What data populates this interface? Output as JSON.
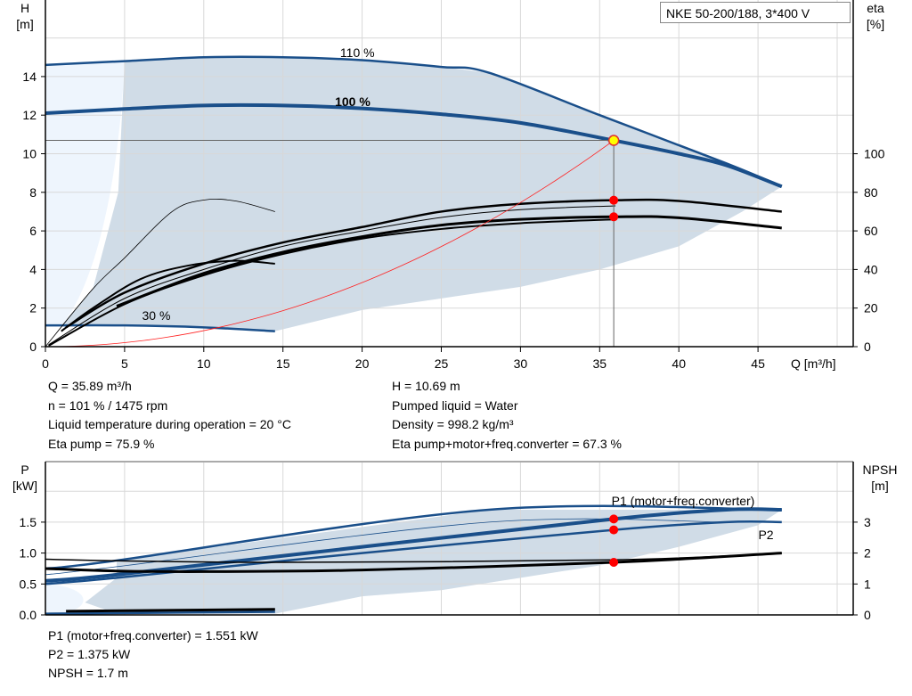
{
  "title": "NKE 50-200/188, 3*400 V",
  "chart_data": [
    {
      "type": "line",
      "xlabel": "Q [m³/h]",
      "ylabel": "H\n[m]",
      "y2label": "eta\n[%]",
      "xlim": [
        0,
        50
      ],
      "ylim": [
        0,
        16
      ],
      "y2lim": [
        0,
        160
      ],
      "xticks": [
        "0",
        "5",
        "10",
        "15",
        "20",
        "25",
        "30",
        "35",
        "40",
        "45"
      ],
      "yticks": [
        "0",
        "2",
        "4",
        "6",
        "8",
        "10",
        "12",
        "14"
      ],
      "y2ticks": [
        "0",
        "20",
        "40",
        "60",
        "80",
        "100"
      ],
      "grid": true,
      "annotations": [
        "110 %",
        "100 %",
        "30 %"
      ],
      "series": [
        {
          "id": "h110",
          "kind": "H",
          "color": "#1a4f8a",
          "width": 2.5,
          "points": [
            [
              0,
              14.6
            ],
            [
              5,
              14.8
            ],
            [
              10,
              15.0
            ],
            [
              15,
              15.0
            ],
            [
              20,
              14.85
            ],
            [
              25,
              14.5
            ],
            [
              28,
              14.2
            ],
            [
              35,
              12.0
            ],
            [
              43,
              9.5
            ],
            [
              46.5,
              8.3
            ]
          ]
        },
        {
          "id": "h100",
          "kind": "H",
          "color": "#1a4f8a",
          "width": 4,
          "points": [
            [
              0,
              12.1
            ],
            [
              4.5,
              12.3
            ],
            [
              10,
              12.5
            ],
            [
              15,
              12.5
            ],
            [
              20,
              12.35
            ],
            [
              25,
              12.05
            ],
            [
              30,
              11.6
            ],
            [
              35.89,
              10.69
            ],
            [
              40,
              10.0
            ],
            [
              43,
              9.4
            ],
            [
              46.5,
              8.3
            ]
          ]
        },
        {
          "id": "h30",
          "kind": "H",
          "color": "#1a4f8a",
          "width": 2.5,
          "points": [
            [
              0,
              1.1
            ],
            [
              5,
              1.1
            ],
            [
              10,
              1.0
            ],
            [
              14.5,
              0.8
            ]
          ]
        },
        {
          "id": "eta-thin",
          "kind": "eta",
          "color": "#000",
          "width": 0.8,
          "points": [
            [
              0,
              0
            ],
            [
              3,
              30
            ],
            [
              5,
              46
            ],
            [
              8,
              70
            ],
            [
              10,
              76
            ],
            [
              12,
              75.5
            ],
            [
              14.5,
              70
            ]
          ]
        },
        {
          "id": "eta-low1",
          "kind": "eta",
          "color": "#000",
          "width": 2,
          "points": [
            [
              1,
              8
            ],
            [
              3,
              20
            ],
            [
              6,
              35
            ],
            [
              9,
              42
            ],
            [
              12,
              44.5
            ],
            [
              14.5,
              43
            ]
          ]
        },
        {
          "id": "eta-pump",
          "kind": "eta",
          "color": "#000",
          "width": 2.5,
          "points": [
            [
              1.3,
              10
            ],
            [
              5,
              28
            ],
            [
              10,
              43
            ],
            [
              15,
              54
            ],
            [
              20,
              62
            ],
            [
              25,
              70
            ],
            [
              30,
              74
            ],
            [
              35.89,
              75.9
            ],
            [
              40,
              75.5
            ],
            [
              46.5,
              70
            ]
          ]
        },
        {
          "id": "eta-mid",
          "kind": "eta",
          "color": "#000",
          "width": 1,
          "points": [
            [
              0.2,
              1
            ],
            [
              5,
              25
            ],
            [
              10,
              40
            ],
            [
              15,
              52
            ],
            [
              20,
              60
            ],
            [
              25,
              67
            ],
            [
              30,
              71
            ],
            [
              36,
              73
            ]
          ]
        },
        {
          "id": "eta-total",
          "kind": "eta",
          "color": "#000",
          "width": 3,
          "points": [
            [
              4.5,
              21
            ],
            [
              10,
              38
            ],
            [
              15,
              49
            ],
            [
              20,
              57
            ],
            [
              25,
              63
            ],
            [
              30,
              66
            ],
            [
              35.89,
              67.3
            ],
            [
              40,
              66.8
            ],
            [
              46.5,
              61.5
            ]
          ]
        },
        {
          "id": "eta-total2",
          "kind": "eta",
          "color": "#000",
          "width": 2,
          "points": [
            [
              0.2,
              0.5
            ],
            [
              5,
              22
            ],
            [
              10,
              37
            ],
            [
              15,
              48
            ],
            [
              20,
              56
            ],
            [
              25,
              61
            ],
            [
              30,
              64
            ],
            [
              36,
              66
            ]
          ]
        },
        {
          "id": "system",
          "kind": "H",
          "color": "#ff2020",
          "width": 0.8,
          "points": "system"
        }
      ],
      "operating_point": {
        "Q": 35.89,
        "H": 10.69,
        "eta_pump": 75.9,
        "eta_total": 67.3
      }
    },
    {
      "type": "line",
      "ylabel": "P\n[kW]",
      "y2label": "NPSH\n[m]",
      "xlim": [
        0,
        50
      ],
      "ylim": [
        0,
        2.5
      ],
      "y2lim": [
        0,
        5
      ],
      "yticks": [
        "0.0",
        "0.5",
        "1.0",
        "1.5"
      ],
      "y2ticks": [
        "0",
        "1",
        "2",
        "3"
      ],
      "grid": true,
      "annotations": [
        "P1 (motor+freq.converter)",
        "P2"
      ],
      "series": [
        {
          "id": "p1-110",
          "kind": "P",
          "color": "#1a4f8a",
          "width": 2.5,
          "points": [
            [
              0,
              0.75
            ],
            [
              4.5,
              0.88
            ],
            [
              28,
              1.7
            ],
            [
              46.5,
              1.7
            ]
          ]
        },
        {
          "id": "p1-thin",
          "kind": "P",
          "color": "#1a4f8a",
          "width": 0.8,
          "points": [
            [
              0,
              0.65
            ],
            [
              4.5,
              0.78
            ],
            [
              28,
              1.5
            ],
            [
              43,
              1.5
            ]
          ]
        },
        {
          "id": "p1-100",
          "kind": "P",
          "color": "#1a4f8a",
          "width": 4,
          "points": [
            [
              0,
              0.55
            ],
            [
              4.5,
              0.65
            ],
            [
              20,
              1.1
            ],
            [
              35.89,
              1.551
            ],
            [
              43,
              1.7
            ],
            [
              46.5,
              1.7
            ]
          ]
        },
        {
          "id": "p2",
          "kind": "P",
          "color": "#1a4f8a",
          "width": 2.5,
          "points": [
            [
              0,
              0.5
            ],
            [
              4.5,
              0.6
            ],
            [
              20,
              1.0
            ],
            [
              35.89,
              1.375
            ],
            [
              43,
              1.5
            ],
            [
              46.5,
              1.5
            ]
          ]
        },
        {
          "id": "p-low",
          "kind": "P",
          "color": "#1a4f8a",
          "width": 2.5,
          "points": [
            [
              0,
              0.02
            ],
            [
              14.5,
              0.05
            ]
          ]
        },
        {
          "id": "npsh-a",
          "kind": "NPSH",
          "color": "#000",
          "width": 1.5,
          "points": [
            [
              0,
              1.8
            ],
            [
              4.5,
              1.75
            ],
            [
              15,
              1.7
            ],
            [
              35.89,
              1.78
            ],
            [
              46.5,
              2.0
            ]
          ]
        },
        {
          "id": "npsh",
          "kind": "NPSH",
          "color": "#000",
          "width": 3,
          "points": [
            [
              0,
              1.5
            ],
            [
              4.5,
              1.42
            ],
            [
              10,
              1.4
            ],
            [
              20,
              1.45
            ],
            [
              35.89,
              1.7
            ],
            [
              46.5,
              2.0
            ]
          ]
        },
        {
          "id": "npsh-low",
          "kind": "NPSH",
          "color": "#000",
          "width": 3,
          "points": [
            [
              1.3,
              0.12
            ],
            [
              14.5,
              0.18
            ]
          ]
        }
      ],
      "operating_point": {
        "P1": 1.551,
        "P2": 1.375,
        "NPSH": 1.7
      }
    }
  ],
  "readouts": {
    "q": "Q = 35.89 m³/h",
    "n": "n = 101 % / 1475 rpm",
    "temp": "Liquid temperature during operation = 20 °C",
    "eta_pump": "Eta pump = 75.9 %",
    "h": "H = 10.69 m",
    "liquid": "Pumped liquid = Water",
    "density": "Density = 998.2 kg/m³",
    "eta_total": "Eta pump+motor+freq.converter = 67.3 %",
    "p1": "P1 (motor+freq.converter) = 1.551 kW",
    "p2": "P2 = 1.375 kW",
    "npsh": "NPSH = 1.7 m"
  },
  "colors": {
    "area": "#d0dce7",
    "area_light": "#eef5fd",
    "curve": "#1a4f8a",
    "point": "#ff0000",
    "op_fill": "#ffff00"
  }
}
